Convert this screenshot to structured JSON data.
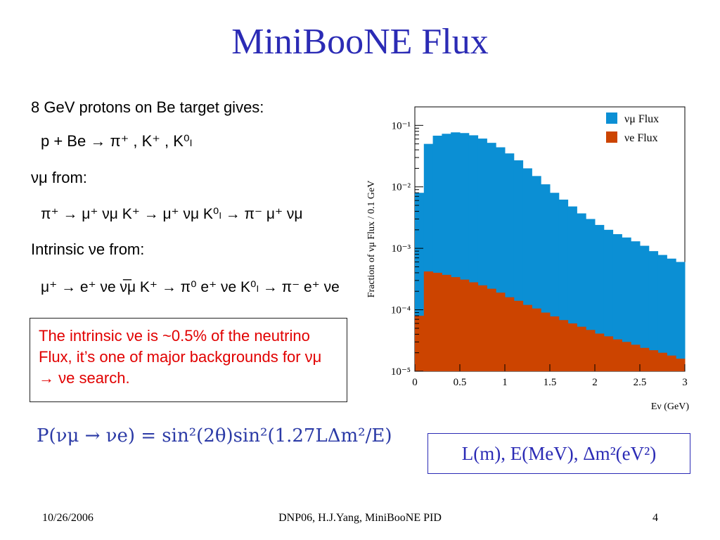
{
  "slide": {
    "title": "MiniBooNE Flux",
    "lines": {
      "l1": "8 GeV protons on Be target gives:",
      "l2": "p + Be → π⁺ , K⁺ , K⁰ₗ",
      "l3": "νμ from:",
      "l4": "π⁺ → μ⁺ νμ     K⁺ → μ⁺ νμ     K⁰ₗ → π⁻ μ⁺ νμ",
      "l5": "Intrinsic νe from:",
      "l6": "μ⁺ → e⁺ νe ν̅μ  K⁺ → π⁰ e⁺ νe  K⁰ₗ → π⁻ e⁺ νe"
    },
    "note": "The intrinsic νe is ~0.5% of the neutrino Flux, it’s one of major backgrounds for νμ → νe search.",
    "formula": "P(νμ → νe) = sin²(2θ)sin²(1.27LΔm²/E)",
    "units": "L(m), E(MeV), Δm²(eV²)",
    "footer": {
      "date": "10/26/2006",
      "center": "DNP06, H.J.Yang,  MiniBooNE PID",
      "page": "4"
    }
  },
  "chart_data": {
    "type": "area",
    "xlabel": "Eν (GeV)",
    "ylabel": "Fraction of νμ Flux / 0.1 GeV",
    "xlim": [
      0,
      3
    ],
    "ylim": [
      1e-05,
      0.2
    ],
    "yscale": "log",
    "x_ticks": [
      "0",
      "0.5",
      "1",
      "1.5",
      "2",
      "2.5",
      "3"
    ],
    "y_ticks": [
      "10⁻⁵",
      "10⁻⁴",
      "10⁻³",
      "10⁻²",
      "10⁻¹"
    ],
    "legend_position": "top-right",
    "bin_width": 0.1,
    "series": [
      {
        "name": "νμ Flux",
        "color": "#0b8fd4",
        "values": [
          0.008,
          0.05,
          0.068,
          0.073,
          0.077,
          0.075,
          0.069,
          0.061,
          0.052,
          0.044,
          0.035,
          0.027,
          0.02,
          0.015,
          0.011,
          0.008,
          0.0062,
          0.0048,
          0.0037,
          0.003,
          0.0024,
          0.002,
          0.0017,
          0.0015,
          0.0013,
          0.0011,
          0.0009,
          0.00078,
          0.00068,
          0.0006
        ]
      },
      {
        "name": "νe Flux",
        "color": "#cc4400",
        "values": [
          8e-05,
          0.00042,
          0.0004,
          0.00037,
          0.00034,
          0.00031,
          0.00028,
          0.00025,
          0.00022,
          0.00019,
          0.00016,
          0.00014,
          0.00012,
          0.000105,
          9e-05,
          7.8e-05,
          6.8e-05,
          6e-05,
          5.3e-05,
          4.7e-05,
          4.1e-05,
          3.7e-05,
          3.3e-05,
          3e-05,
          2.7e-05,
          2.4e-05,
          2.2e-05,
          2e-05,
          1.8e-05,
          1.6e-05
        ]
      }
    ]
  }
}
